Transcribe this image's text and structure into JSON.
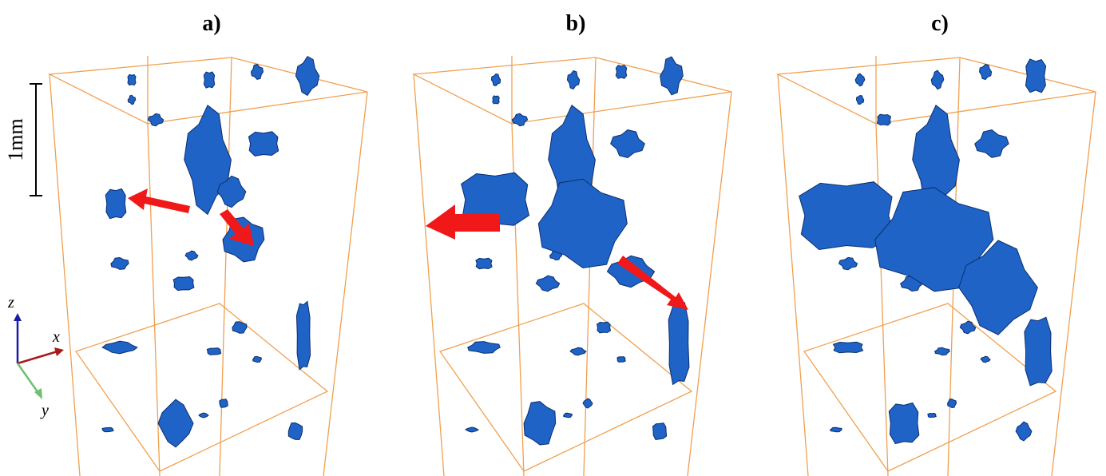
{
  "panels": [
    {
      "label": "a)"
    },
    {
      "label": "b)"
    },
    {
      "label": "c)"
    }
  ],
  "scale_bar": {
    "label": "1mm"
  },
  "axes": {
    "z": "z",
    "x": "x",
    "y": "y"
  }
}
